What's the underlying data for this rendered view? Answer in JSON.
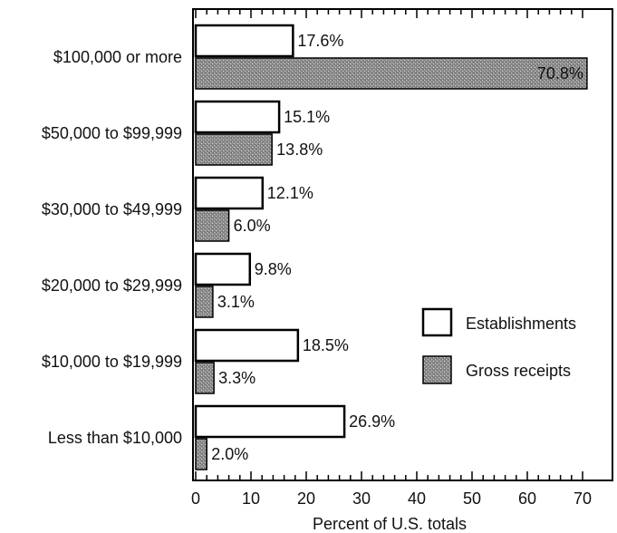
{
  "chart_data": {
    "type": "bar",
    "orientation": "horizontal",
    "categories": [
      "$100,000 or more",
      "$50,000 to $99,999",
      "$30,000 to $49,999",
      "$20,000 to $29,999",
      "$10,000 to $19,999",
      "Less than $10,000"
    ],
    "series": [
      {
        "name": "Establishments",
        "values": [
          17.6,
          15.1,
          12.1,
          9.8,
          18.5,
          26.9
        ],
        "labels": [
          "17.6%",
          "15.1%",
          "12.1%",
          "9.8%",
          "18.5%",
          "26.9%"
        ],
        "fill": "#ffffff"
      },
      {
        "name": "Gross receipts",
        "values": [
          70.8,
          13.8,
          6.0,
          3.1,
          3.3,
          2.0
        ],
        "labels": [
          "70.8%",
          "13.8%",
          "6.0%",
          "3.1%",
          "3.3%",
          "2.0%"
        ],
        "fill": "#9a9a9a"
      }
    ],
    "xlabel": "Percent of U.S. totals",
    "xlim": [
      0,
      70
    ],
    "xticks": [
      "0",
      "10",
      "20",
      "30",
      "40",
      "50",
      "60",
      "70"
    ],
    "grid": false,
    "legend_position": "right"
  }
}
